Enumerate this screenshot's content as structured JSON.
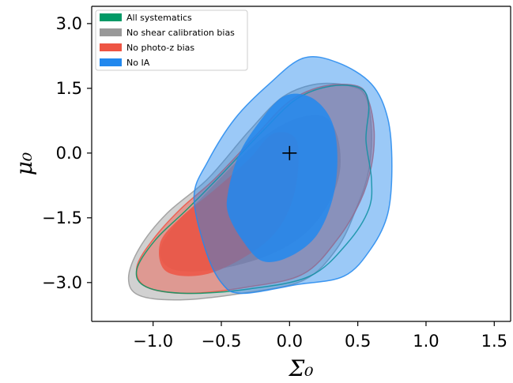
{
  "chart_data": {
    "type": "contour",
    "title": "",
    "xlabel": "Σ₀",
    "ylabel": "μ₀",
    "xlim": [
      -1.45,
      1.62
    ],
    "ylim": [
      -3.9,
      3.4
    ],
    "xticks": [
      "−1.0",
      "−0.5",
      "0.0",
      "0.5",
      "1.0",
      "1.5"
    ],
    "xtick_values": [
      -1.0,
      -0.5,
      0.0,
      0.5,
      1.0,
      1.5
    ],
    "yticks": [
      "3.0",
      "1.5",
      "0.0",
      "−1.5",
      "−3.0"
    ],
    "ytick_values": [
      3.0,
      1.5,
      0.0,
      -1.5,
      -3.0
    ],
    "fiducial": {
      "x": 0.0,
      "y": 0.0,
      "marker": "+"
    },
    "legend": {
      "placement": "top-left",
      "entries": [
        {
          "label": "All systematics",
          "color": "#009966"
        },
        {
          "label": "No shear calibration bias",
          "color": "#999999"
        },
        {
          "label": "No photo-z bias",
          "color": "#ee5544"
        },
        {
          "label": "No IA",
          "color": "#2288ee"
        }
      ]
    },
    "series": [
      {
        "name": "No shear calibration bias",
        "color": "#999999",
        "contour_95": [
          [
            -1.18,
            -2.9
          ],
          [
            -1.1,
            -2.2
          ],
          [
            -0.9,
            -1.4
          ],
          [
            -0.6,
            -0.6
          ],
          [
            -0.3,
            0.5
          ],
          [
            -0.05,
            1.3
          ],
          [
            0.2,
            1.6
          ],
          [
            0.45,
            1.55
          ],
          [
            0.56,
            1.3
          ],
          [
            0.6,
            0.5
          ],
          [
            0.58,
            -0.4
          ],
          [
            0.5,
            -1.2
          ],
          [
            0.35,
            -2.2
          ],
          [
            0.1,
            -2.95
          ],
          [
            -0.35,
            -3.25
          ],
          [
            -0.8,
            -3.4
          ],
          [
            -1.1,
            -3.3
          ]
        ],
        "contour_68": [
          [
            -0.95,
            -2.3
          ],
          [
            -0.85,
            -1.7
          ],
          [
            -0.65,
            -1.05
          ],
          [
            -0.42,
            -0.3
          ],
          [
            -0.18,
            0.4
          ],
          [
            0.05,
            0.8
          ],
          [
            0.25,
            0.85
          ],
          [
            0.35,
            0.4
          ],
          [
            0.37,
            -0.4
          ],
          [
            0.28,
            -1.2
          ],
          [
            0.1,
            -1.9
          ],
          [
            -0.18,
            -2.4
          ],
          [
            -0.55,
            -2.7
          ],
          [
            -0.85,
            -2.7
          ]
        ]
      },
      {
        "name": "No photo-z bias",
        "color": "#ee5544",
        "contour_95": [
          [
            -1.12,
            -2.65
          ],
          [
            -1.0,
            -2.0
          ],
          [
            -0.8,
            -1.3
          ],
          [
            -0.55,
            -0.6
          ],
          [
            -0.25,
            0.4
          ],
          [
            0.0,
            1.2
          ],
          [
            0.25,
            1.55
          ],
          [
            0.5,
            1.55
          ],
          [
            0.58,
            1.2
          ],
          [
            0.62,
            0.5
          ],
          [
            0.6,
            -0.3
          ],
          [
            0.52,
            -1.1
          ],
          [
            0.35,
            -2.0
          ],
          [
            0.1,
            -2.8
          ],
          [
            -0.3,
            -3.1
          ],
          [
            -0.75,
            -3.25
          ],
          [
            -1.05,
            -3.1
          ]
        ],
        "contour_68": [
          [
            -0.95,
            -2.1
          ],
          [
            -0.8,
            -1.5
          ],
          [
            -0.55,
            -0.85
          ],
          [
            -0.3,
            -0.15
          ],
          [
            -0.12,
            0.45
          ],
          [
            0.05,
            0.3
          ],
          [
            0.05,
            -0.7
          ],
          [
            -0.05,
            -1.6
          ],
          [
            -0.25,
            -2.25
          ],
          [
            -0.6,
            -2.8
          ],
          [
            -0.9,
            -2.75
          ]
        ]
      },
      {
        "name": "All systematics",
        "color": "#009966",
        "contour_95": [
          [
            -1.12,
            -2.7
          ],
          [
            -0.98,
            -2.0
          ],
          [
            -0.75,
            -1.3
          ],
          [
            -0.5,
            -0.5
          ],
          [
            -0.2,
            0.5
          ],
          [
            0.05,
            1.25
          ],
          [
            0.3,
            1.55
          ],
          [
            0.52,
            1.5
          ],
          [
            0.58,
            1.1
          ],
          [
            0.56,
            0.3
          ],
          [
            0.6,
            -0.6
          ],
          [
            0.58,
            -1.3
          ],
          [
            0.42,
            -2.1
          ],
          [
            0.15,
            -2.85
          ],
          [
            -0.3,
            -3.15
          ],
          [
            -0.75,
            -3.25
          ],
          [
            -1.05,
            -3.1
          ]
        ]
      },
      {
        "name": "No IA",
        "color": "#2288ee",
        "contour_95": [
          [
            -0.7,
            -1.0
          ],
          [
            -0.6,
            -0.2
          ],
          [
            -0.4,
            0.8
          ],
          [
            -0.15,
            1.6
          ],
          [
            0.1,
            2.2
          ],
          [
            0.35,
            2.1
          ],
          [
            0.6,
            1.6
          ],
          [
            0.72,
            0.8
          ],
          [
            0.75,
            -0.3
          ],
          [
            0.72,
            -1.4
          ],
          [
            0.6,
            -2.2
          ],
          [
            0.4,
            -2.85
          ],
          [
            0.05,
            -3.05
          ],
          [
            -0.35,
            -3.25
          ],
          [
            -0.5,
            -3.0
          ],
          [
            -0.62,
            -2.2
          ]
        ],
        "contour_68": [
          [
            -0.45,
            -0.9
          ],
          [
            -0.38,
            -0.1
          ],
          [
            -0.25,
            0.6
          ],
          [
            -0.05,
            1.3
          ],
          [
            0.15,
            1.3
          ],
          [
            0.3,
            0.8
          ],
          [
            0.35,
            0.0
          ],
          [
            0.32,
            -1.0
          ],
          [
            0.2,
            -1.9
          ],
          [
            0.0,
            -2.4
          ],
          [
            -0.2,
            -2.5
          ],
          [
            -0.35,
            -2.0
          ],
          [
            -0.45,
            -1.4
          ]
        ]
      }
    ]
  }
}
